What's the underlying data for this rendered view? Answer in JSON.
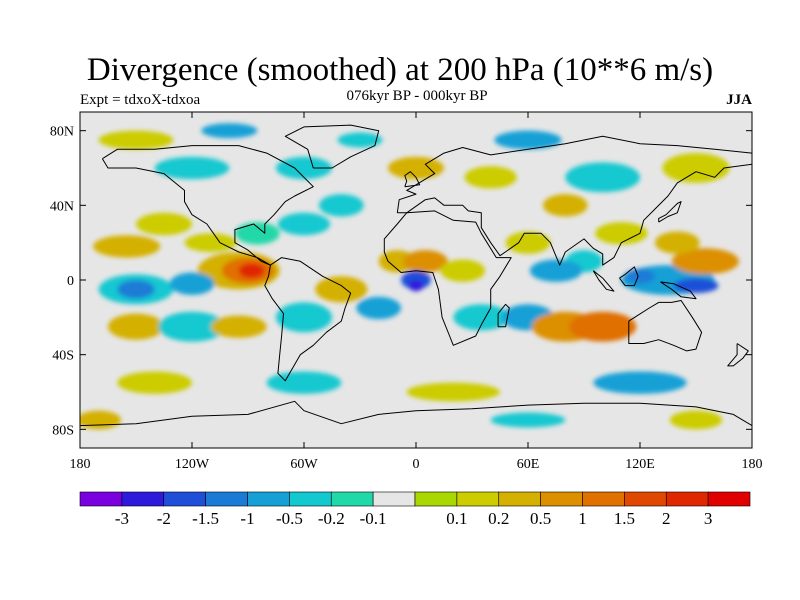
{
  "title": "Divergence (smoothed) at 200 hPa (10**6 m/s)",
  "subtitle": "076kyr BP - 000kyr BP",
  "experiment": "Expt = tdxoX-tdxoa",
  "season": "JJA",
  "map": {
    "lon_range": [
      -180,
      180
    ],
    "lat_range": [
      -90,
      90
    ],
    "background_color": "#e6e6e6",
    "lat_ticks": [
      {
        "value": 80,
        "label": "80N"
      },
      {
        "value": 40,
        "label": "40N"
      },
      {
        "value": 0,
        "label": "0"
      },
      {
        "value": -40,
        "label": "40S"
      },
      {
        "value": -80,
        "label": "80S"
      }
    ],
    "lon_ticks": [
      {
        "value": -180,
        "label": "180"
      },
      {
        "value": -120,
        "label": "120W"
      },
      {
        "value": -60,
        "label": "60W"
      },
      {
        "value": 0,
        "label": "0"
      },
      {
        "value": 60,
        "label": "60E"
      },
      {
        "value": 120,
        "label": "120E"
      },
      {
        "value": 180,
        "label": "180"
      }
    ]
  },
  "colorbar": {
    "colors": [
      "#7a00e0",
      "#2e1adb",
      "#1f4fd8",
      "#1a7bd6",
      "#17a0d6",
      "#14c8d0",
      "#20d8a8",
      "#e6e6e6",
      "#a8d800",
      "#cccc00",
      "#d4b000",
      "#dc9000",
      "#e07000",
      "#e04800",
      "#e02800",
      "#e00000"
    ],
    "labels": [
      "-3",
      "-2",
      "-1.5",
      "-1",
      "-0.5",
      "-0.2",
      "-0.1",
      "0.1",
      "0.2",
      "0.5",
      "1",
      "1.5",
      "2",
      "3"
    ]
  }
}
